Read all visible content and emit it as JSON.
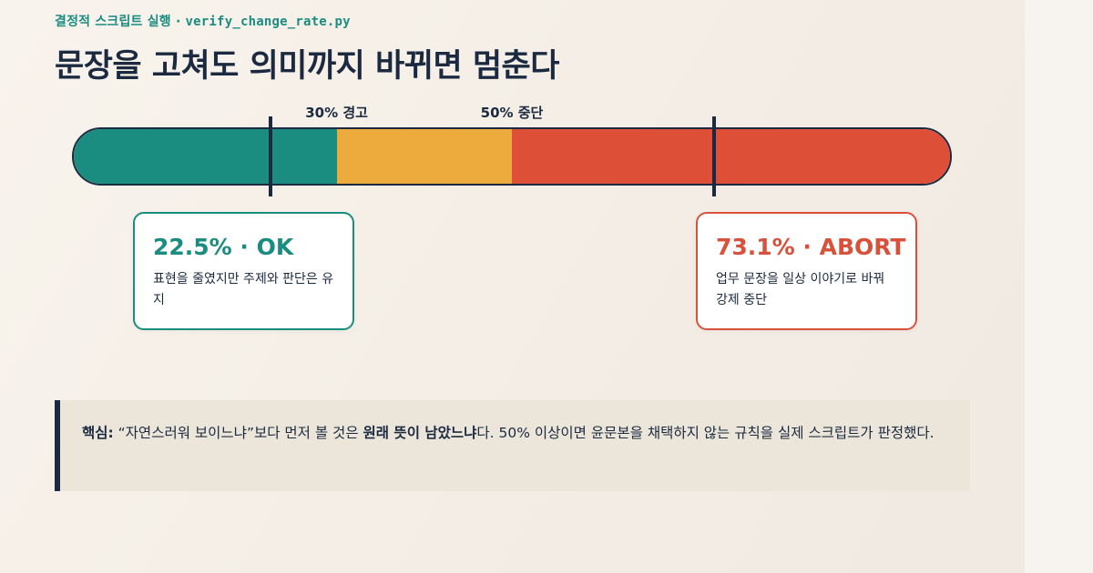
{
  "header": {
    "eyebrow_prefix": "결정적 스크립트 실행 · ",
    "eyebrow_script": "verify_change_rate.py",
    "title": "문장을 고쳐도 의미까지 바뀌면 멈춘다"
  },
  "gauge": {
    "thresholds": [
      {
        "value": 30,
        "label": "30% 경고"
      },
      {
        "value": 50,
        "label": "50% 중단"
      }
    ],
    "segments": [
      {
        "from": 0,
        "to": 30,
        "color": "#1a8c80"
      },
      {
        "from": 30,
        "to": 50,
        "color": "#eeab3d"
      },
      {
        "from": 50,
        "to": 100,
        "color": "#dd4f37"
      }
    ],
    "markers": [
      22.5,
      73.1
    ]
  },
  "results": {
    "ok": {
      "value": 22.5,
      "title": "22.5% · OK",
      "description": "표현을 줄였지만 주제와 판단은 유지"
    },
    "abort": {
      "value": 73.1,
      "title": "73.1% · ABORT",
      "description": "업무 문장을 일상 이야기로 바꿔 강제 중단"
    }
  },
  "note": {
    "label": "핵심:",
    "part1": " “자연스러워 보이느냐”보다 먼저 볼 것은 ",
    "emphasis": "원래 뜻이 남았느냐",
    "part2": "다. 50% 이상이면 윤문본을 채택하지 않는 규칙을 실제 스크립트가 판정했다."
  },
  "colors": {
    "ok": "#1a8c80",
    "warning": "#eeab3d",
    "abort": "#dd4f37",
    "ink": "#1b2a40"
  }
}
